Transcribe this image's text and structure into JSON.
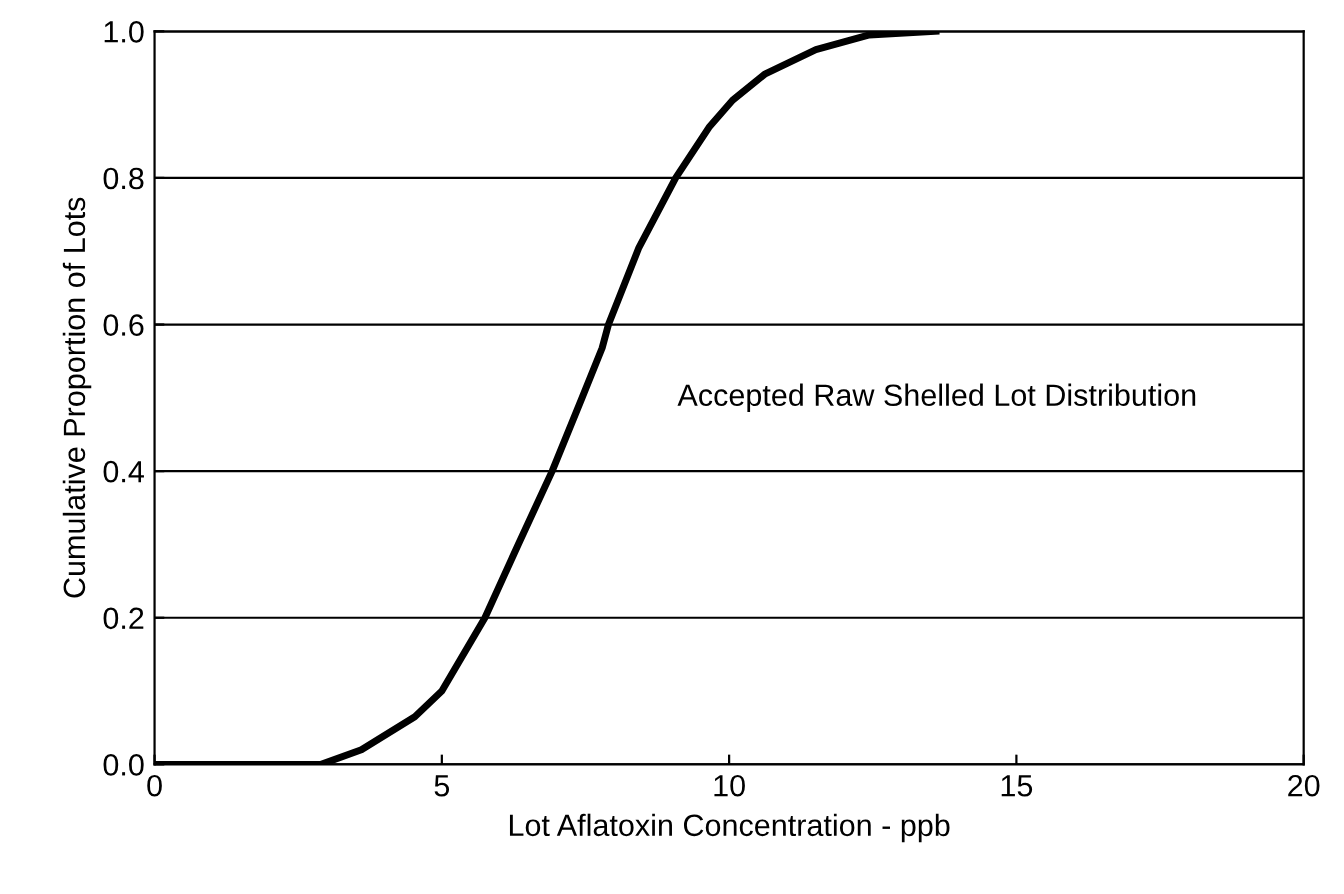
{
  "chart_data": {
    "type": "line",
    "xlabel": "Lot Aflatoxin Concentration - ppb",
    "ylabel": "Cumulative Proportion of Lots",
    "annotations": [
      "Accepted Raw Shelled Lot Distribution"
    ],
    "series": [
      {
        "color": "#000000",
        "x": [
          0,
          2.9,
          3.6,
          4.53,
          5.0,
          5.75,
          6.33,
          6.92,
          7.44,
          7.79,
          7.9,
          8.43,
          9.07,
          9.65,
          10.06,
          10.63,
          11.51,
          12.44,
          13.6
        ],
        "values": [
          0,
          0,
          0.02,
          0.065,
          0.1,
          0.2,
          0.3,
          0.4,
          0.5,
          0.568,
          0.6,
          0.705,
          0.8,
          0.869,
          0.906,
          0.942,
          0.975,
          0.995,
          1.0
        ]
      }
    ],
    "xlim": [
      0,
      20
    ],
    "xticks": [
      0,
      5,
      10,
      15,
      20
    ],
    "ylim": [
      0,
      1
    ],
    "yticks": [
      {
        "value": 0,
        "label": "0.0"
      },
      {
        "value": 0.2,
        "label": "0.2"
      },
      {
        "value": 0.4,
        "label": "0.4"
      },
      {
        "value": 0.6,
        "label": "0.6"
      },
      {
        "value": 0.8,
        "label": "0.8"
      },
      {
        "value": 1,
        "label": "1.0"
      }
    ],
    "grid": "y",
    "marker": "none",
    "line_style": "solid"
  }
}
